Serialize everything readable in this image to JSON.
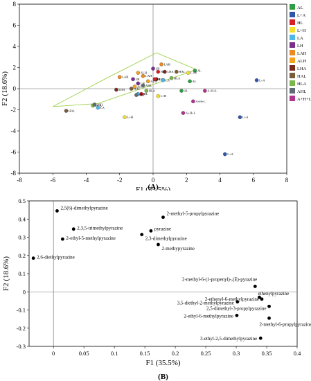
{
  "chart_data": [
    {
      "type": "scatter",
      "panel_label": "(A)",
      "xlabel": "F1 (35.5%)",
      "ylabel": "F2 (18.6%)",
      "xlim": [
        -8,
        8
      ],
      "ylim": [
        -8,
        8
      ],
      "xticks": [
        "-8",
        "-6",
        "-4",
        "-2",
        "0",
        "2",
        "4",
        "6",
        "8"
      ],
      "yticks": [
        "-8",
        "-6",
        "-4",
        "-2",
        "0",
        "2",
        "4",
        "6",
        "8"
      ],
      "grid": false,
      "legend": "right",
      "legend_entries": [
        {
          "name": "AL",
          "color": "#2e9e44"
        },
        {
          "name": "L+A",
          "color": "#2f56a8"
        },
        {
          "name": "HL",
          "color": "#d61f26"
        },
        {
          "name": "L+H",
          "color": "#f2e02a"
        },
        {
          "name": "LA",
          "color": "#4fb7e6"
        },
        {
          "name": "LH",
          "color": "#7b2d8e"
        },
        {
          "name": "LAH",
          "color": "#e98a22"
        },
        {
          "name": "ALH",
          "color": "#f4a21d"
        },
        {
          "name": "LHA",
          "color": "#7a2a1c"
        },
        {
          "name": "HAL",
          "color": "#7a5c3a"
        },
        {
          "name": "HLA",
          "color": "#7ab648"
        },
        {
          "name": "AHL",
          "color": "#5e6b74"
        },
        {
          "name": "A+H+L",
          "color": "#b0338c"
        }
      ],
      "points": [
        {
          "label": "L+A",
          "x": 6.2,
          "y": 0.8,
          "color": "#2f56a8"
        },
        {
          "label": "L+A",
          "x": 5.2,
          "y": -2.7,
          "color": "#2f56a8"
        },
        {
          "label": "L+A",
          "x": 4.3,
          "y": -6.2,
          "color": "#2f56a8"
        },
        {
          "label": "AL",
          "x": 2.5,
          "y": 1.7,
          "color": "#2e9e44"
        },
        {
          "label": "AL",
          "x": 1.7,
          "y": -0.2,
          "color": "#2e9e44"
        },
        {
          "label": "AL",
          "x": 2.2,
          "y": 0.7,
          "color": "#2e9e44"
        },
        {
          "label": "A+H+L",
          "x": 3.1,
          "y": -0.2,
          "color": "#b0338c"
        },
        {
          "label": "A+H+L",
          "x": 2.4,
          "y": -1.2,
          "color": "#b0338c"
        },
        {
          "label": "A+H+L",
          "x": 1.8,
          "y": -2.3,
          "color": "#b0338c"
        },
        {
          "label": "L+H",
          "x": 2.1,
          "y": 1.5,
          "color": "#f2e02a"
        },
        {
          "label": "L+H",
          "x": 0.3,
          "y": -0.7,
          "color": "#f2e02a"
        },
        {
          "label": "L+H",
          "x": -1.7,
          "y": -2.7,
          "color": "#f2e02a"
        },
        {
          "label": "HAL",
          "x": 1.4,
          "y": 1.6,
          "color": "#7a5c3a"
        },
        {
          "label": "HAL",
          "x": -1.3,
          "y": 0.0,
          "color": "#7a5c3a"
        },
        {
          "label": "HAL",
          "x": -5.2,
          "y": -2.1,
          "color": "#7a5c3a"
        },
        {
          "label": "HLA",
          "x": 1.1,
          "y": 1.0,
          "color": "#7ab648"
        },
        {
          "label": "HLA",
          "x": -0.4,
          "y": -0.2,
          "color": "#7ab648"
        },
        {
          "label": "HLA",
          "x": -3.6,
          "y": -1.6,
          "color": "#7ab648"
        },
        {
          "label": "LHA",
          "x": 0.7,
          "y": 1.6,
          "color": "#7a2a1c"
        },
        {
          "label": "LHA",
          "x": 0.2,
          "y": 0.9,
          "color": "#7a2a1c"
        },
        {
          "label": "LHA",
          "x": -2.2,
          "y": -0.1,
          "color": "#7a2a1c"
        },
        {
          "label": "LAH",
          "x": 0.5,
          "y": 2.3,
          "color": "#e98a22"
        },
        {
          "label": "LAH",
          "x": -0.6,
          "y": 1.2,
          "color": "#e98a22"
        },
        {
          "label": "LAH",
          "x": -2.0,
          "y": 1.1,
          "color": "#e98a22"
        },
        {
          "label": "LH",
          "x": 0.0,
          "y": 1.9,
          "color": "#7b2d8e"
        },
        {
          "label": "LH",
          "x": -0.9,
          "y": 0.5,
          "color": "#7b2d8e"
        },
        {
          "label": "LH",
          "x": -1.2,
          "y": 0.9,
          "color": "#7b2d8e"
        },
        {
          "label": "HL",
          "x": 0.3,
          "y": 1.6,
          "color": "#d61f26"
        },
        {
          "label": "HL",
          "x": 0.1,
          "y": 0.9,
          "color": "#d61f26"
        },
        {
          "label": "HL",
          "x": -0.7,
          "y": -0.5,
          "color": "#d61f26"
        },
        {
          "label": "ALH",
          "x": -0.9,
          "y": 1.5,
          "color": "#f4a21d"
        },
        {
          "label": "ALH",
          "x": -0.3,
          "y": 0.7,
          "color": "#f4a21d"
        },
        {
          "label": "ALH",
          "x": -1.1,
          "y": 0.2,
          "color": "#f4a21d"
        },
        {
          "label": "LA",
          "x": 0.6,
          "y": 0.8,
          "color": "#4fb7e6"
        },
        {
          "label": "LA",
          "x": -0.9,
          "y": -0.5,
          "color": "#4fb7e6"
        },
        {
          "label": "LA",
          "x": -3.3,
          "y": -1.8,
          "color": "#4fb7e6"
        },
        {
          "label": "AHL",
          "x": -1.0,
          "y": -0.6,
          "color": "#5e6b74"
        },
        {
          "label": "AHL",
          "x": -0.6,
          "y": 0.3,
          "color": "#5e6b74"
        },
        {
          "label": "AHL",
          "x": -3.5,
          "y": -1.5,
          "color": "#5e6b74"
        }
      ],
      "region_outline": [
        [
          -6.0,
          -1.7
        ],
        [
          -3.3,
          -1.4
        ],
        [
          2.6,
          1.8
        ],
        [
          0.2,
          3.4
        ],
        [
          -2.9,
          0.9
        ]
      ]
    },
    {
      "type": "scatter",
      "panel_label": "(B)",
      "xlabel": "F1 (35.5%)",
      "ylabel": "F2 (18.6%)",
      "xlim": [
        -0.04,
        0.4
      ],
      "ylim": [
        -0.3,
        0.5
      ],
      "xticks": [
        "0",
        "0.05",
        "0.1",
        "0.15",
        "0.2",
        "0.25",
        "0.3",
        "0.35",
        "0.4"
      ],
      "yticks": [
        "-0.3",
        "-0.2",
        "-0.1",
        "0",
        "0.1",
        "0.2",
        "0.3",
        "0.4",
        "0.5"
      ],
      "grid": false,
      "points": [
        {
          "label": "2,5(6)-dimethylpyrazine",
          "x": 0.006,
          "y": 0.445
        },
        {
          "label": "2-methyl-5-propylpyrazine",
          "x": 0.18,
          "y": 0.41
        },
        {
          "label": "2,3,5-trimethylpyrazine",
          "x": 0.033,
          "y": 0.345
        },
        {
          "label": "pyrazine",
          "x": 0.16,
          "y": 0.335
        },
        {
          "label": "2,3-dimethylpyrazine",
          "x": 0.145,
          "y": 0.315
        },
        {
          "label": "2-ethyl-5-methylpyrazine",
          "x": 0.015,
          "y": 0.29
        },
        {
          "label": "2-methypyrazine",
          "x": 0.172,
          "y": 0.26
        },
        {
          "label": "2,6-diethylpyrazine",
          "x": -0.033,
          "y": 0.185
        },
        {
          "label": "2-methyl-6-(1-propenyl)-,(E)-pyrazine",
          "x": 0.331,
          "y": 0.03
        },
        {
          "label": "ethenylpyrazine",
          "x": 0.338,
          "y": -0.03
        },
        {
          "label": "2-ethenyl-6-methylpyrazine",
          "x": 0.342,
          "y": -0.04
        },
        {
          "label": "3,5-diethyl-2-methylpyrazine",
          "x": 0.302,
          "y": -0.055
        },
        {
          "label": "2,5-dimethyl-3-propylpyrazine",
          "x": 0.354,
          "y": -0.08
        },
        {
          "label": "2-ethyl-6-methylpyrazine",
          "x": 0.301,
          "y": -0.13
        },
        {
          "label": "2-methyl-6-propylpyrazine",
          "x": 0.354,
          "y": -0.145
        },
        {
          "label": "3-ethyl-2,5-dimethylpyrazine",
          "x": 0.34,
          "y": -0.255
        }
      ]
    }
  ]
}
